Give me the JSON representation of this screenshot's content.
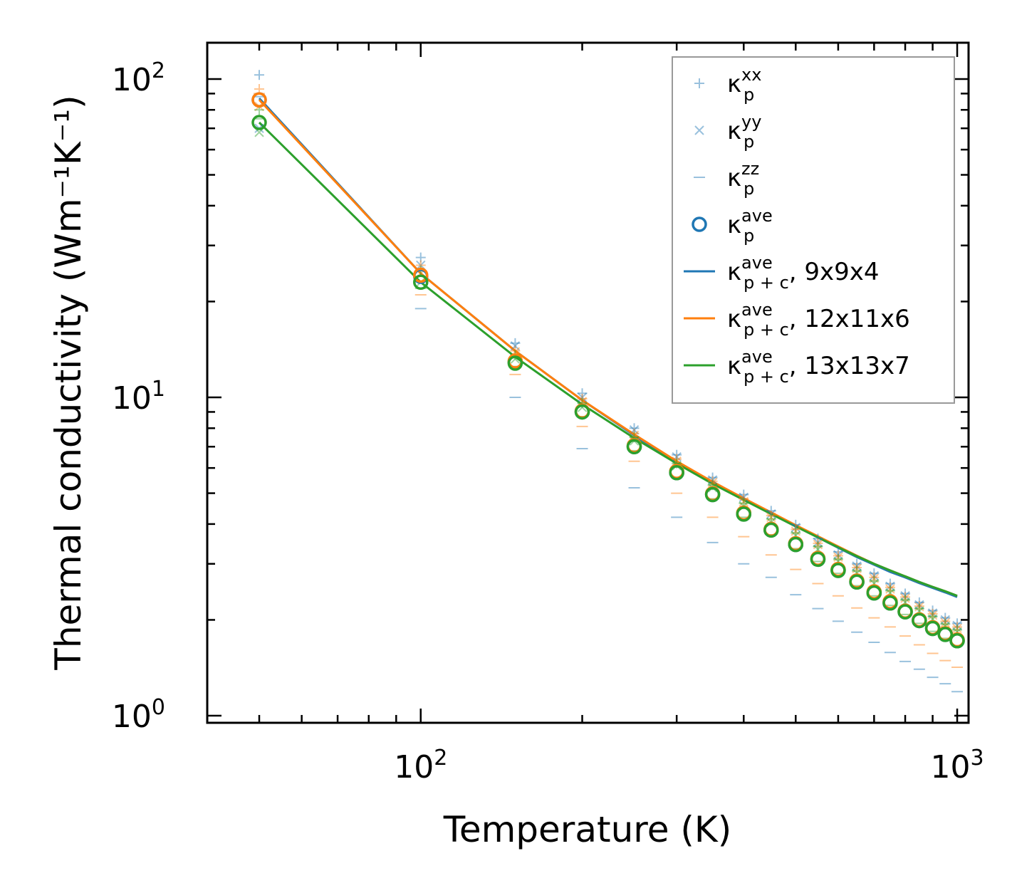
{
  "chart_data": {
    "type": "line",
    "title": "",
    "xlabel": "Temperature (K)",
    "ylabel": "Thermal conductivity (Wm⁻¹K⁻¹)",
    "xscale": "log",
    "yscale": "log",
    "xlim": [
      40,
      1050
    ],
    "ylim": [
      0.95,
      130
    ],
    "x_major_ticks": [
      {
        "value": 100,
        "base": "10",
        "exp": "2"
      },
      {
        "value": 1000,
        "base": "10",
        "exp": "3"
      }
    ],
    "y_major_ticks": [
      {
        "value": 1,
        "base": "10",
        "exp": "0"
      },
      {
        "value": 10,
        "base": "10",
        "exp": "1"
      },
      {
        "value": 100,
        "base": "10",
        "exp": "2"
      }
    ],
    "legend_position": "top-right",
    "colors": {
      "blue": "#1f77b4",
      "orange": "#ff7f0e",
      "green": "#2ca02c"
    },
    "x": [
      50,
      100,
      150,
      200,
      250,
      300,
      350,
      400,
      450,
      500,
      550,
      600,
      650,
      700,
      750,
      800,
      850,
      900,
      950,
      1000
    ],
    "series": [
      {
        "name": "kp_xx",
        "legend": {
          "base": "κ",
          "sup": "xx",
          "sub": "p",
          "tail": ""
        },
        "grid": "9x9x4",
        "marker": "plus",
        "color": "#1f77b4",
        "alpha": 0.45,
        "values": [
          103,
          27.5,
          14.8,
          10.3,
          8.0,
          6.6,
          5.6,
          4.95,
          4.4,
          3.98,
          3.6,
          3.27,
          3.0,
          2.8,
          2.6,
          2.42,
          2.27,
          2.14,
          2.03,
          1.95
        ]
      },
      {
        "name": "kp_xx",
        "legend": null,
        "grid": "12x11x6",
        "marker": "plus",
        "color": "#ff7f0e",
        "alpha": 0.45,
        "values": [
          93,
          26.0,
          14.0,
          9.9,
          7.7,
          6.4,
          5.45,
          4.8,
          4.25,
          3.85,
          3.48,
          3.18,
          2.92,
          2.72,
          2.53,
          2.36,
          2.21,
          2.09,
          1.98,
          1.9
        ]
      },
      {
        "name": "kp_xx",
        "legend": null,
        "grid": "13x13x7",
        "marker": "plus",
        "color": "#2ca02c",
        "alpha": 0.45,
        "values": [
          80,
          25.0,
          13.6,
          9.6,
          7.5,
          6.2,
          5.3,
          4.65,
          4.15,
          3.75,
          3.4,
          3.1,
          2.85,
          2.65,
          2.47,
          2.31,
          2.17,
          2.05,
          1.94,
          1.86
        ]
      },
      {
        "name": "kp_yy",
        "legend": {
          "base": "κ",
          "sup": "yy",
          "sub": "p",
          "tail": ""
        },
        "grid": "9x9x4",
        "marker": "x",
        "color": "#1f77b4",
        "alpha": 0.45,
        "values": [
          70,
          26.0,
          14.5,
          10.0,
          7.9,
          6.5,
          5.5,
          4.85,
          4.3,
          3.9,
          3.5,
          3.2,
          2.95,
          2.75,
          2.55,
          2.38,
          2.23,
          2.1,
          2.0,
          1.92
        ]
      },
      {
        "name": "kp_yy",
        "legend": null,
        "grid": "12x11x6",
        "marker": "x",
        "color": "#ff7f0e",
        "alpha": 0.45,
        "values": [
          82,
          24.5,
          13.9,
          9.7,
          7.6,
          6.3,
          5.4,
          4.7,
          4.2,
          3.8,
          3.45,
          3.15,
          2.9,
          2.7,
          2.5,
          2.34,
          2.2,
          2.07,
          1.96,
          1.88
        ]
      },
      {
        "name": "kp_yy",
        "legend": null,
        "grid": "13x13x7",
        "marker": "x",
        "color": "#2ca02c",
        "alpha": 0.45,
        "values": [
          68,
          23.0,
          13.2,
          9.3,
          7.3,
          6.1,
          5.2,
          4.55,
          4.05,
          3.68,
          3.33,
          3.05,
          2.8,
          2.6,
          2.43,
          2.27,
          2.13,
          2.01,
          1.91,
          1.83
        ]
      },
      {
        "name": "kp_zz",
        "legend": {
          "base": "κ",
          "sup": "zz",
          "sub": "p",
          "tail": ""
        },
        "grid": "9x9x4",
        "marker": "hline",
        "color": "#1f77b4",
        "alpha": 0.45,
        "values": [
          88,
          19.0,
          10.0,
          6.9,
          5.2,
          4.2,
          3.5,
          3.0,
          2.72,
          2.4,
          2.17,
          1.98,
          1.83,
          1.7,
          1.58,
          1.48,
          1.4,
          1.32,
          1.26,
          1.19
        ]
      },
      {
        "name": "kp_zz",
        "legend": null,
        "grid": "12x11x6",
        "marker": "hline",
        "color": "#ff7f0e",
        "alpha": 0.45,
        "values": [
          90,
          21.0,
          11.8,
          8.1,
          6.3,
          5.0,
          4.2,
          3.65,
          3.2,
          2.88,
          2.6,
          2.38,
          2.18,
          2.03,
          1.9,
          1.78,
          1.67,
          1.57,
          1.49,
          1.42
        ]
      },
      {
        "name": "kp_zz",
        "legend": null,
        "grid": "13x13x7",
        "marker": "hline",
        "color": "#2ca02c",
        "alpha": 0.45,
        "values": [
          75,
          22.0,
          12.5,
          8.7,
          6.8,
          5.6,
          4.8,
          4.2,
          3.7,
          3.35,
          3.05,
          2.8,
          2.56,
          2.38,
          2.22,
          2.08,
          1.95,
          1.84,
          1.75,
          1.66
        ]
      },
      {
        "name": "kp_ave",
        "legend": {
          "base": "κ",
          "sup": "ave",
          "sub": "p",
          "tail": ""
        },
        "grid": "9x9x4",
        "marker": "circle",
        "color": "#1f77b4",
        "alpha": 1.0,
        "values": [
          86,
          24.0,
          12.9,
          9.0,
          7.0,
          5.8,
          4.95,
          4.3,
          3.83,
          3.45,
          3.1,
          2.86,
          2.63,
          2.43,
          2.26,
          2.12,
          1.99,
          1.88,
          1.8,
          1.72
        ]
      },
      {
        "name": "kp_ave",
        "legend": null,
        "grid": "12x11x6",
        "marker": "circle",
        "color": "#ff7f0e",
        "alpha": 1.0,
        "values": [
          86,
          24.2,
          13.0,
          9.05,
          7.05,
          5.85,
          4.98,
          4.33,
          3.85,
          3.47,
          3.12,
          2.88,
          2.65,
          2.45,
          2.28,
          2.13,
          2.0,
          1.89,
          1.81,
          1.73
        ]
      },
      {
        "name": "kp_ave",
        "legend": null,
        "grid": "13x13x7",
        "marker": "circle",
        "color": "#2ca02c",
        "alpha": 1.0,
        "values": [
          73,
          23.0,
          12.8,
          9.0,
          7.0,
          5.8,
          4.95,
          4.3,
          3.83,
          3.45,
          3.1,
          2.86,
          2.63,
          2.43,
          2.26,
          2.12,
          1.99,
          1.88,
          1.8,
          1.72
        ]
      },
      {
        "name": "kpc_ave_9x9x4",
        "legend": {
          "base": "κ",
          "sup": "ave",
          "sub": "p + c",
          "tail": ", 9x9x4"
        },
        "marker": "line",
        "color": "#1f77b4",
        "alpha": 1.0,
        "values": [
          87,
          24.5,
          14.0,
          9.8,
          7.6,
          6.25,
          5.4,
          4.8,
          4.33,
          3.95,
          3.63,
          3.37,
          3.15,
          2.98,
          2.83,
          2.72,
          2.61,
          2.52,
          2.44,
          2.36
        ]
      },
      {
        "name": "kpc_ave_12x11x6",
        "legend": {
          "base": "κ",
          "sup": "ave",
          "sub": "p + c",
          "tail": ", 12x11x6"
        },
        "marker": "line",
        "color": "#ff7f0e",
        "alpha": 1.0,
        "values": [
          86,
          24.5,
          14.0,
          9.8,
          7.65,
          6.3,
          5.43,
          4.82,
          4.35,
          3.97,
          3.66,
          3.4,
          3.18,
          3.0,
          2.86,
          2.74,
          2.63,
          2.54,
          2.46,
          2.38
        ]
      },
      {
        "name": "kpc_ave_13x13x7",
        "legend": {
          "base": "κ",
          "sup": "ave",
          "sub": "p + c",
          "tail": ", 13x13x7"
        },
        "marker": "line",
        "color": "#2ca02c",
        "alpha": 1.0,
        "values": [
          73,
          23.0,
          13.4,
          9.5,
          7.45,
          6.2,
          5.35,
          4.76,
          4.3,
          3.93,
          3.63,
          3.38,
          3.17,
          3.0,
          2.86,
          2.74,
          2.63,
          2.54,
          2.46,
          2.38
        ]
      }
    ]
  }
}
